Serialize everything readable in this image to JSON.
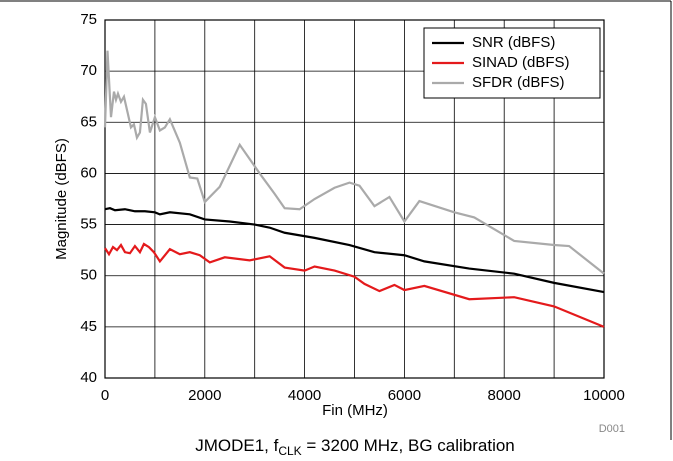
{
  "chart_data": {
    "type": "line",
    "title": [
      "JMODE1, f",
      "CLK",
      " = 3200 MHz, BG calibration"
    ],
    "xlabel": "Fin (MHz)",
    "ylabel": "Magnitude (dBFS)",
    "annotation": "D001",
    "xlim": [
      0,
      10000
    ],
    "xticks": [
      0,
      2000,
      4000,
      6000,
      8000,
      10000
    ],
    "xminor": [
      1000,
      3000,
      5000,
      7000,
      9000
    ],
    "ylim": [
      40,
      75
    ],
    "yticks": [
      40,
      45,
      50,
      55,
      60,
      65,
      70,
      75
    ],
    "grid": true,
    "legend": "upper right",
    "series": [
      {
        "name": "SNR (dBFS)",
        "color": "#000000",
        "x": [
          0,
          100,
          200,
          400,
          600,
          800,
          1000,
          1100,
          1300,
          1700,
          2000,
          2500,
          3000,
          3300,
          3600,
          4200,
          4900,
          5400,
          6000,
          6400,
          7300,
          8200,
          9000,
          10000
        ],
        "values": [
          56.5,
          56.6,
          56.4,
          56.5,
          56.3,
          56.3,
          56.2,
          56.0,
          56.2,
          56.0,
          55.5,
          55.3,
          55.0,
          54.7,
          54.2,
          53.7,
          53.0,
          52.3,
          52.0,
          51.4,
          50.7,
          50.2,
          49.3,
          48.4
        ]
      },
      {
        "name": "SINAD (dBFS)",
        "color": "#e41a1c",
        "x": [
          0,
          80,
          160,
          240,
          320,
          400,
          500,
          600,
          700,
          780,
          880,
          980,
          1100,
          1200,
          1300,
          1500,
          1700,
          1900,
          2100,
          2400,
          2900,
          3300,
          3600,
          4000,
          4200,
          4600,
          5000,
          5200,
          5500,
          5800,
          6000,
          6400,
          7300,
          8200,
          9000,
          10000
        ],
        "values": [
          52.7,
          52.1,
          52.8,
          52.5,
          53.0,
          52.3,
          52.2,
          52.9,
          52.3,
          53.1,
          52.8,
          52.3,
          51.4,
          52.0,
          52.6,
          52.1,
          52.3,
          52.0,
          51.3,
          51.8,
          51.5,
          51.9,
          50.8,
          50.5,
          50.9,
          50.5,
          49.9,
          49.2,
          48.5,
          49.1,
          48.6,
          49.0,
          47.7,
          47.9,
          47.0,
          45.0
        ]
      },
      {
        "name": "SFDR (dBFS)",
        "color": "#aaaaaa",
        "x": [
          0,
          50,
          120,
          180,
          220,
          260,
          320,
          380,
          460,
          520,
          580,
          640,
          700,
          760,
          820,
          900,
          1000,
          1100,
          1200,
          1300,
          1500,
          1700,
          1850,
          2000,
          2300,
          2700,
          3100,
          3400,
          3600,
          3900,
          4200,
          4600,
          4900,
          5100,
          5400,
          5700,
          6000,
          6300,
          7000,
          7400,
          8200,
          9000,
          9300,
          10000
        ],
        "values": [
          64.5,
          72.0,
          65.5,
          68.0,
          67.2,
          67.8,
          67.0,
          67.5,
          65.8,
          64.5,
          64.8,
          63.5,
          64.0,
          67.2,
          66.8,
          64.0,
          65.5,
          64.2,
          64.5,
          65.3,
          63.0,
          59.6,
          59.5,
          57.2,
          58.7,
          62.8,
          60.0,
          58.0,
          56.6,
          56.5,
          57.5,
          58.6,
          59.1,
          58.8,
          56.8,
          57.7,
          55.3,
          57.3,
          56.2,
          55.7,
          53.4,
          53.0,
          52.9,
          50.2
        ]
      }
    ]
  }
}
